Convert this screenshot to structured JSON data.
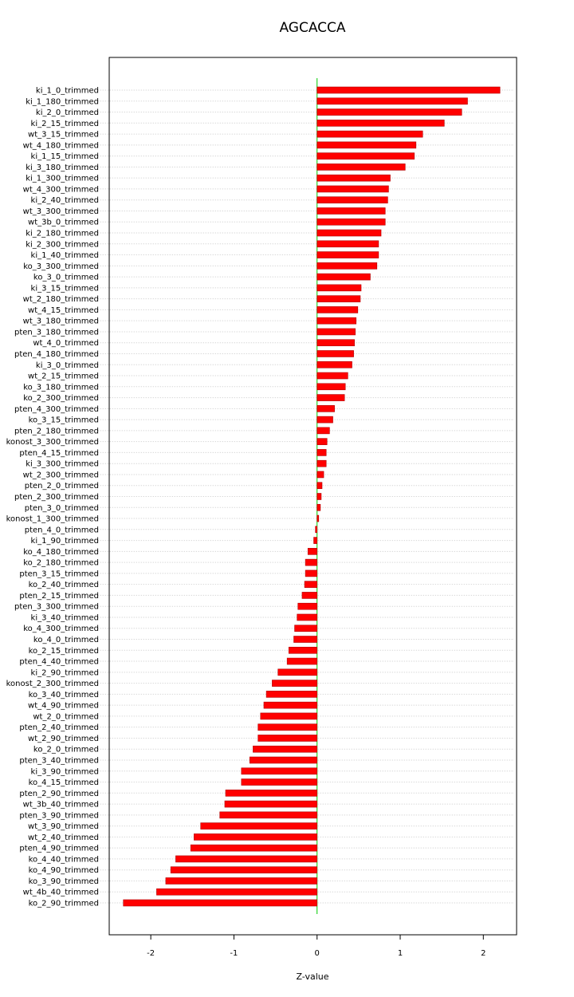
{
  "chart_data": {
    "type": "bar",
    "orientation": "horizontal",
    "title": "AGCACCA",
    "xlabel": "Z-value",
    "ylabel": "",
    "xlim": [
      -2.5,
      2.4
    ],
    "x_ticks": [
      -2,
      -1,
      0,
      1,
      2
    ],
    "x_tick_labels": [
      "-2",
      "-1",
      "0",
      "1",
      "2"
    ],
    "grid": "horizontal dotted",
    "reference_line": {
      "x": 0,
      "color": "#00cc00"
    },
    "colors": {
      "bar": "#ff0000",
      "bar_border": "#b00000",
      "grid": "#c8c8c8",
      "zero_line": "#00cc00"
    },
    "categories": [
      "ki_1_0_trimmed",
      "ki_1_180_trimmed",
      "ki_2_0_trimmed",
      "ki_2_15_trimmed",
      "wt_3_15_trimmed",
      "wt_4_180_trimmed",
      "ki_1_15_trimmed",
      "ki_3_180_trimmed",
      "ki_1_300_trimmed",
      "wt_4_300_trimmed",
      "ki_2_40_trimmed",
      "wt_3_300_trimmed",
      "wt_3b_0_trimmed",
      "ki_2_180_trimmed",
      "ki_2_300_trimmed",
      "ki_1_40_trimmed",
      "ko_3_300_trimmed",
      "ko_3_0_trimmed",
      "ki_3_15_trimmed",
      "wt_2_180_trimmed",
      "wt_4_15_trimmed",
      "wt_3_180_trimmed",
      "pten_3_180_trimmed",
      "wt_4_0_trimmed",
      "pten_4_180_trimmed",
      "ki_3_0_trimmed",
      "wt_2_15_trimmed",
      "ko_3_180_trimmed",
      "ko_2_300_trimmed",
      "pten_4_300_trimmed",
      "ko_3_15_trimmed",
      "pten_2_180_trimmed",
      "konost_3_300_trimmed",
      "pten_4_15_trimmed",
      "ki_3_300_trimmed",
      "wt_2_300_trimmed",
      "pten_2_0_trimmed",
      "pten_2_300_trimmed",
      "pten_3_0_trimmed",
      "konost_1_300_trimmed",
      "pten_4_0_trimmed",
      "ki_1_90_trimmed",
      "ko_4_180_trimmed",
      "ko_2_180_trimmed",
      "pten_3_15_trimmed",
      "ko_2_40_trimmed",
      "pten_2_15_trimmed",
      "pten_3_300_trimmed",
      "ki_3_40_trimmed",
      "ko_4_300_trimmed",
      "ko_4_0_trimmed",
      "ko_2_15_trimmed",
      "pten_4_40_trimmed",
      "ki_2_90_trimmed",
      "konost_2_300_trimmed",
      "ko_3_40_trimmed",
      "wt_4_90_trimmed",
      "wt_2_0_trimmed",
      "pten_2_40_trimmed",
      "wt_2_90_trimmed",
      "ko_2_0_trimmed",
      "pten_3_40_trimmed",
      "ki_3_90_trimmed",
      "ko_4_15_trimmed",
      "pten_2_90_trimmed",
      "wt_3b_40_trimmed",
      "pten_3_90_trimmed",
      "wt_3_90_trimmed",
      "wt_2_40_trimmed",
      "pten_4_90_trimmed",
      "ko_4_40_trimmed",
      "ko_4_90_trimmed",
      "ko_3_90_trimmed",
      "wt_4b_40_trimmed",
      "ko_2_90_trimmed"
    ],
    "values": [
      2.2,
      1.81,
      1.74,
      1.53,
      1.27,
      1.19,
      1.17,
      1.06,
      0.88,
      0.86,
      0.85,
      0.82,
      0.82,
      0.77,
      0.74,
      0.74,
      0.72,
      0.64,
      0.53,
      0.52,
      0.49,
      0.47,
      0.46,
      0.45,
      0.44,
      0.42,
      0.37,
      0.34,
      0.33,
      0.21,
      0.19,
      0.15,
      0.12,
      0.11,
      0.11,
      0.08,
      0.06,
      0.05,
      0.04,
      0.02,
      -0.02,
      -0.04,
      -0.11,
      -0.14,
      -0.14,
      -0.15,
      -0.18,
      -0.23,
      -0.24,
      -0.27,
      -0.28,
      -0.34,
      -0.36,
      -0.47,
      -0.54,
      -0.61,
      -0.64,
      -0.68,
      -0.71,
      -0.71,
      -0.77,
      -0.81,
      -0.91,
      -0.91,
      -1.1,
      -1.11,
      -1.17,
      -1.4,
      -1.48,
      -1.52,
      -1.7,
      -1.76,
      -1.82,
      -1.93,
      -2.33
    ]
  }
}
